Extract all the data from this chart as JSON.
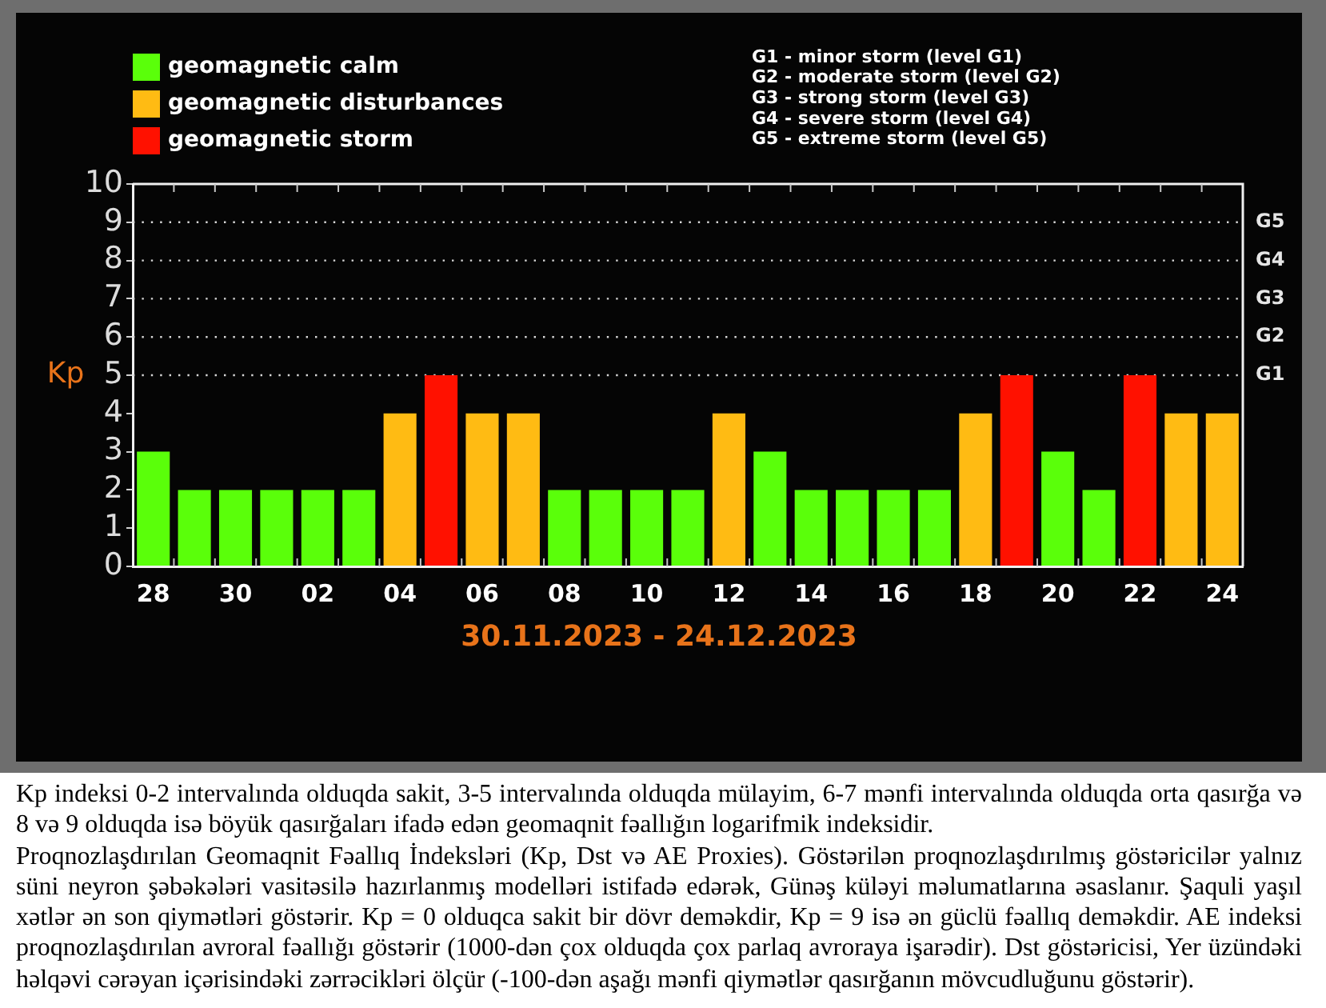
{
  "chart_data": {
    "type": "bar",
    "xlabel": "30.11.2023 - 24.12.2023",
    "ylabel": "Kp",
    "categories": [
      "28",
      null,
      "30",
      null,
      "02",
      null,
      "04",
      null,
      "06",
      null,
      "08",
      null,
      "10",
      null,
      "12",
      null,
      "14",
      null,
      "16",
      null,
      "18",
      null,
      "20",
      null,
      "22",
      null,
      "24"
    ],
    "series": [
      {
        "name": "geomagnetic calm",
        "color": "#5aff0a",
        "values": [
          3,
          2,
          2,
          2,
          2,
          2,
          null,
          null,
          null,
          null,
          2,
          2,
          2,
          2,
          null,
          3,
          2,
          2,
          2,
          2,
          null,
          null,
          3,
          2,
          null,
          null,
          null
        ]
      },
      {
        "name": "geomagnetic disturbances",
        "color": "#ffbb13",
        "values": [
          null,
          null,
          null,
          null,
          null,
          null,
          4,
          null,
          4,
          4,
          null,
          null,
          null,
          null,
          4,
          null,
          null,
          null,
          null,
          null,
          4,
          null,
          null,
          null,
          null,
          4,
          4
        ]
      },
      {
        "name": "geomagnetic storm",
        "color": "#ff1100",
        "values": [
          null,
          null,
          null,
          null,
          null,
          null,
          null,
          5,
          null,
          null,
          null,
          null,
          null,
          null,
          null,
          null,
          null,
          null,
          null,
          null,
          null,
          5,
          null,
          null,
          5,
          null,
          null
        ]
      }
    ],
    "ylim": [
      0,
      10
    ],
    "yticks": [
      0,
      1,
      2,
      3,
      4,
      5,
      6,
      7,
      8,
      9,
      10
    ],
    "ref_lines": [
      {
        "axis": "y",
        "value": 5,
        "label": "G1",
        "color": "#d8d8d8",
        "line_style": "dotted"
      },
      {
        "axis": "y",
        "value": 6,
        "label": "G2",
        "color": "#d8d8d8",
        "line_style": "dotted"
      },
      {
        "axis": "y",
        "value": 7,
        "label": "G3",
        "color": "#d8d8d8",
        "line_style": "dotted"
      },
      {
        "axis": "y",
        "value": 8,
        "label": "G4",
        "color": "#d8d8d8",
        "line_style": "dotted"
      },
      {
        "axis": "y",
        "value": 9,
        "label": "G5",
        "color": "#d8d8d8",
        "line_style": "dotted"
      }
    ],
    "legend": "top left",
    "annotations": [
      "G1 - minor storm (level G1)",
      "G2 - moderate storm (level G2)",
      "G3 - strong storm (level G3)",
      "G4 - severe storm (level G4)",
      "G5 - extreme storm (level G5)",
      "Kp indeksi 0-2 intervalında olduqda sakit, 3-5 intervalında olduqda mülayim, 6-7 mənfi intervalında olduqda orta qasırğa və 8 və 9 olduqda isə böyük qasırğaları ifadə edən geomaqnit fəallığın logarifmik indeksidir.",
      "Proqnozlaşdırılan Geomaqnit Fəallıq İndeksləri (Kp, Dst və AE Proxies). Göstərilən proqnozlaşdırılmış göstəricilər yalnız süni neyron şəbəkələri vasitəsilə hazırlanmış modelləri istifadə edərək, Günəş küləyi məlumatlarına əsaslanır. Şaquli yaşıl xətlər ən son qiymətləri göstərir. Kp = 0 olduqca sakit bir dövr deməkdir, Kp = 9 isə ən güclü fəallıq deməkdir. AE indeksi proqnozlaşdırılan avroral fəallığı göstərir (1000-dən çox olduqda çox parlaq avroraya işarədir). Dst göstəricisi, Yer üzündəki həlqəvi cərəyan içərisindəki zərrəcikləri ölçür (-100-dən aşağı mənfi qiymətlər qasırğanın mövcudluğunu göstərir)."
    ]
  }
}
